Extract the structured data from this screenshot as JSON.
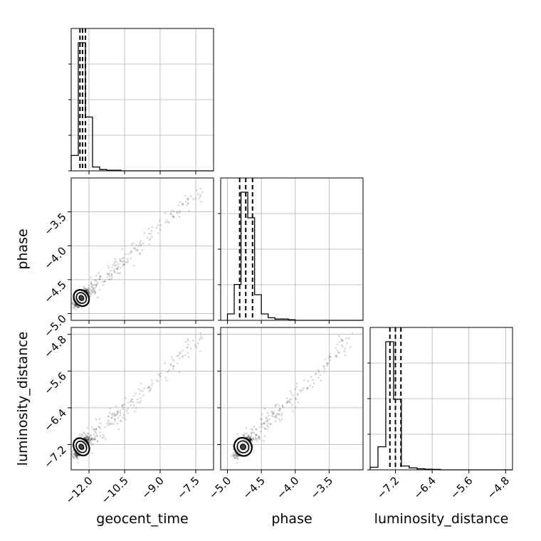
{
  "chart_data": {
    "type": "corner",
    "parameters": [
      "geocent_time",
      "phase",
      "luminosity_distance"
    ],
    "axis_labels": {
      "geocent_time": "geocent_time",
      "phase": "phase",
      "luminosity_distance": "luminosity_distance"
    },
    "ticks": {
      "geocent_time": [
        -12.0,
        -10.5,
        -9.0,
        -7.5
      ],
      "phase": [
        -5.0,
        -4.5,
        -4.0,
        -3.5
      ],
      "luminosity_distance": [
        -7.2,
        -6.4,
        -5.6,
        -4.8
      ]
    },
    "tick_labels": {
      "geocent_time": [
        "−12.0",
        "−10.5",
        "−9.0",
        "−7.5"
      ],
      "phase": [
        "−5.0",
        "−4.5",
        "−4.0",
        "−3.5"
      ],
      "luminosity_distance": [
        "−7.2",
        "−6.4",
        "−5.6",
        "−4.8"
      ]
    },
    "ranges": {
      "geocent_time": [
        -12.75,
        -6.75
      ],
      "phase": [
        -5.1,
        -3.0
      ],
      "luminosity_distance": [
        -7.75,
        -4.65
      ]
    },
    "histograms": {
      "geocent_time": {
        "edges": [
          -12.75,
          -12.45,
          -12.15,
          -11.85,
          -11.55,
          -11.25,
          -10.95,
          -10.65,
          -10.35
        ],
        "counts": [
          0.12,
          1.0,
          0.42,
          0.03,
          0.01,
          0.005,
          0.005,
          0.0
        ],
        "quantiles": [
          -12.38,
          -12.27,
          -12.15
        ]
      },
      "phase": {
        "edges": [
          -5.0,
          -4.9,
          -4.8,
          -4.7,
          -4.6,
          -4.5,
          -4.4,
          -4.3,
          -4.2,
          -4.1,
          -4.0
        ],
        "counts": [
          0.05,
          0.28,
          1.0,
          0.8,
          0.2,
          0.05,
          0.02,
          0.01,
          0.01,
          0.005
        ],
        "quantiles": [
          -4.82,
          -4.73,
          -4.63
        ]
      },
      "luminosity_distance": {
        "edges": [
          -7.75,
          -7.58,
          -7.41,
          -7.24,
          -7.07,
          -6.9,
          -6.73,
          -6.56,
          -6.39,
          -6.22
        ],
        "counts": [
          0.02,
          0.18,
          1.0,
          0.55,
          0.03,
          0.015,
          0.008,
          0.005,
          0.003
        ],
        "quantiles": [
          -7.32,
          -7.2,
          -7.08
        ]
      }
    },
    "grid": true,
    "histogram_y_ticks": 4
  }
}
